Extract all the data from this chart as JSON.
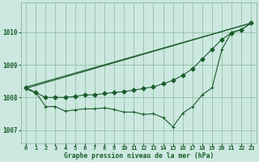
{
  "background_color": "#cce8e0",
  "grid_color": "#88bb99",
  "line_color": "#1a5c2a",
  "marker_color": "#1a5c2a",
  "title": "Graphe pression niveau de la mer (hPa)",
  "ylabel_ticks": [
    1007,
    1008,
    1009,
    1010
  ],
  "xlim": [
    -0.5,
    23.5
  ],
  "ylim": [
    1006.6,
    1010.9
  ],
  "x_ticks": [
    0,
    1,
    2,
    3,
    4,
    5,
    6,
    7,
    8,
    9,
    10,
    11,
    12,
    13,
    14,
    15,
    16,
    17,
    18,
    19,
    20,
    21,
    22,
    23
  ],
  "series1_x": [
    0,
    1,
    2,
    3,
    4,
    5,
    6,
    7,
    8,
    9,
    10,
    11,
    12,
    13,
    14,
    15,
    16,
    17,
    18,
    19,
    20,
    21,
    22,
    23
  ],
  "series1_y": [
    1008.25,
    1008.15,
    1007.72,
    1007.72,
    1007.58,
    1007.62,
    1007.65,
    1007.65,
    1007.68,
    1007.63,
    1007.55,
    1007.55,
    1007.48,
    1007.5,
    1007.38,
    1007.1,
    1007.52,
    1007.72,
    1008.08,
    1008.3,
    1009.48,
    1010.0,
    1010.08,
    1010.28
  ],
  "series2_x": [
    0,
    1,
    2,
    3,
    4,
    5,
    6,
    7,
    8,
    9,
    10,
    11,
    12,
    13,
    14,
    15,
    16,
    17,
    18,
    19,
    20,
    21,
    22,
    23
  ],
  "series2_y": [
    1008.3,
    1008.15,
    1008.0,
    1008.0,
    1008.0,
    1008.03,
    1008.08,
    1008.08,
    1008.12,
    1008.15,
    1008.18,
    1008.22,
    1008.28,
    1008.32,
    1008.42,
    1008.52,
    1008.68,
    1008.88,
    1009.18,
    1009.48,
    1009.78,
    1009.98,
    1010.08,
    1010.28
  ],
  "series3_x": [
    0,
    23
  ],
  "series3_y": [
    1008.28,
    1010.28
  ],
  "series4_x": [
    0,
    23
  ],
  "series4_y": [
    1008.32,
    1010.28
  ]
}
